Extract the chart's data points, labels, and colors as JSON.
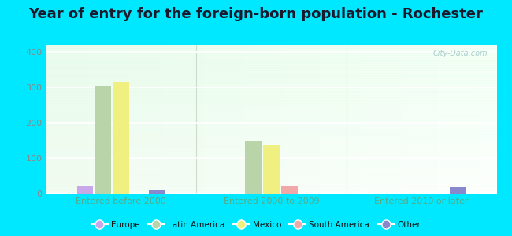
{
  "title": "Year of entry for the foreign-born population - Rochester",
  "categories": [
    "Entered before 2000",
    "Entered 2000 to 2009",
    "Entered 2010 or later"
  ],
  "series": {
    "Europe": [
      20,
      0,
      0
    ],
    "Latin America": [
      305,
      150,
      0
    ],
    "Mexico": [
      315,
      138,
      0
    ],
    "South America": [
      0,
      22,
      0
    ],
    "Other": [
      12,
      0,
      18
    ]
  },
  "bar_colors": {
    "Europe": "#c8a8e8",
    "Latin America": "#b8d4a8",
    "Mexico": "#f0f080",
    "South America": "#f0a8a8",
    "Other": "#8888cc"
  },
  "ylim": [
    0,
    420
  ],
  "yticks": [
    0,
    100,
    200,
    300,
    400
  ],
  "outer_bg": "#00e8ff",
  "plot_bg_left": "#e8f8e8",
  "plot_bg_right": "#ffffff",
  "title_color": "#1a1a2e",
  "title_fontsize": 13,
  "axis_label_color": "#55aa88",
  "ytick_color": "#888888",
  "watermark": "City-Data.com",
  "watermark_color": "#aacccc"
}
